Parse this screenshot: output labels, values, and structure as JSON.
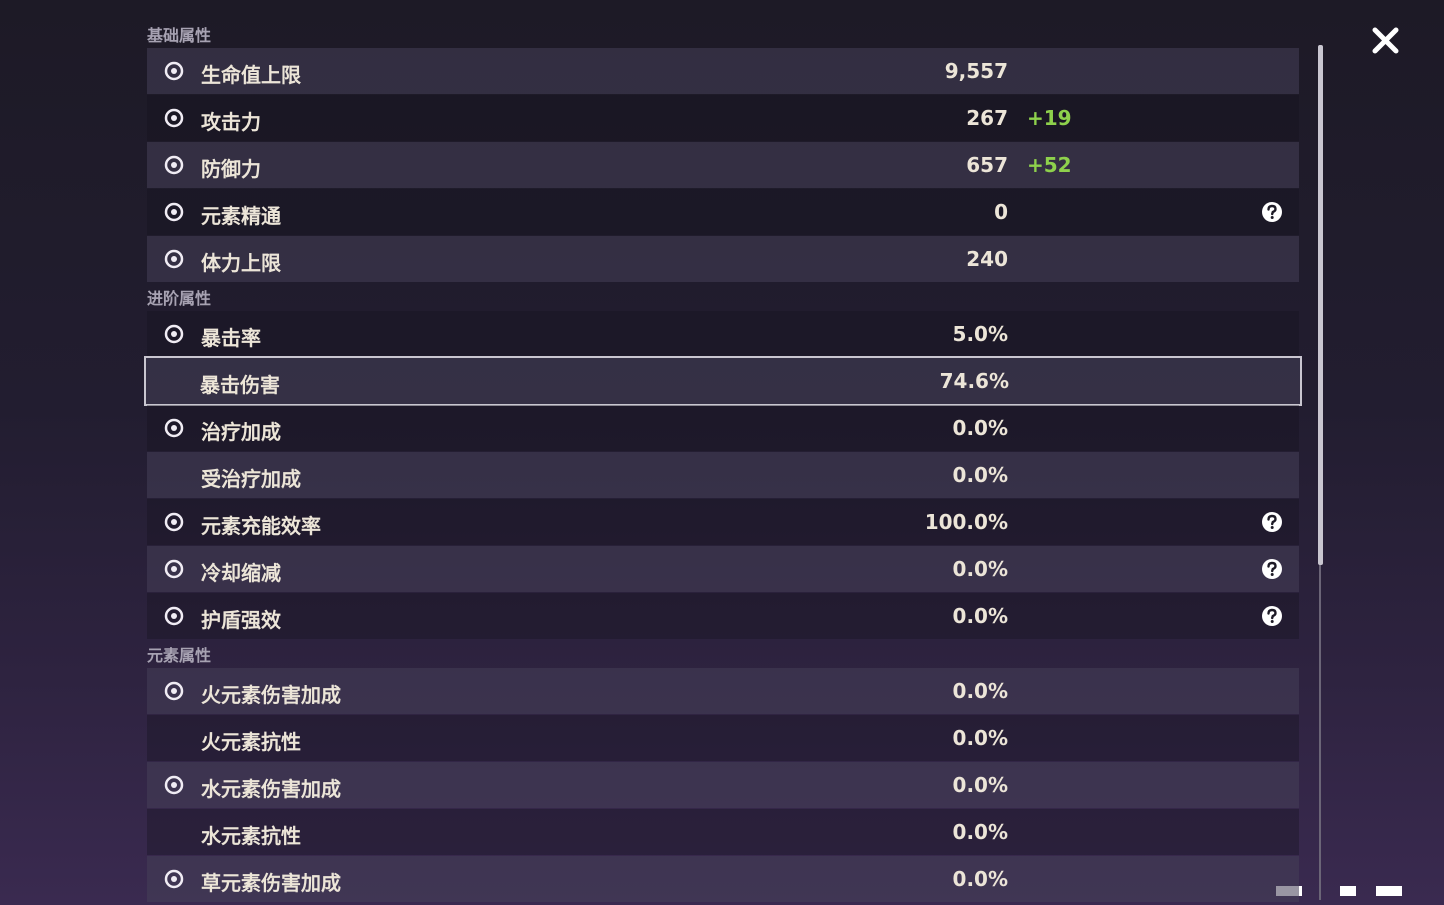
{
  "sections": [
    {
      "title": "基础属性",
      "rows": [
        {
          "label": "生命值上限",
          "value": "9,557",
          "icon": true
        },
        {
          "label": "攻击力",
          "value": "267",
          "bonus": "+19",
          "icon": true
        },
        {
          "label": "防御力",
          "value": "657",
          "bonus": "+52",
          "icon": true
        },
        {
          "label": "元素精通",
          "value": "0",
          "help": true,
          "icon": true
        },
        {
          "label": "体力上限",
          "value": "240",
          "icon": true
        }
      ]
    },
    {
      "title": "进阶属性",
      "rows": [
        {
          "label": "暴击率",
          "value": "5.0%",
          "icon": true
        },
        {
          "label": "暴击伤害",
          "value": "74.6%",
          "icon": false,
          "selected": true
        },
        {
          "label": "治疗加成",
          "value": "0.0%",
          "icon": true
        },
        {
          "label": "受治疗加成",
          "value": "0.0%",
          "icon": false
        },
        {
          "label": "元素充能效率",
          "value": "100.0%",
          "help": true,
          "icon": true
        },
        {
          "label": "冷却缩减",
          "value": "0.0%",
          "help": true,
          "icon": true
        },
        {
          "label": "护盾强效",
          "value": "0.0%",
          "help": true,
          "icon": true
        }
      ]
    },
    {
      "title": "元素属性",
      "rows": [
        {
          "label": "火元素伤害加成",
          "value": "0.0%",
          "icon": true
        },
        {
          "label": "火元素抗性",
          "value": "0.0%",
          "icon": false
        },
        {
          "label": "水元素伤害加成",
          "value": "0.0%",
          "icon": true
        },
        {
          "label": "水元素抗性",
          "value": "0.0%",
          "icon": false
        },
        {
          "label": "草元素伤害加成",
          "value": "0.0%",
          "icon": true
        }
      ]
    }
  ]
}
